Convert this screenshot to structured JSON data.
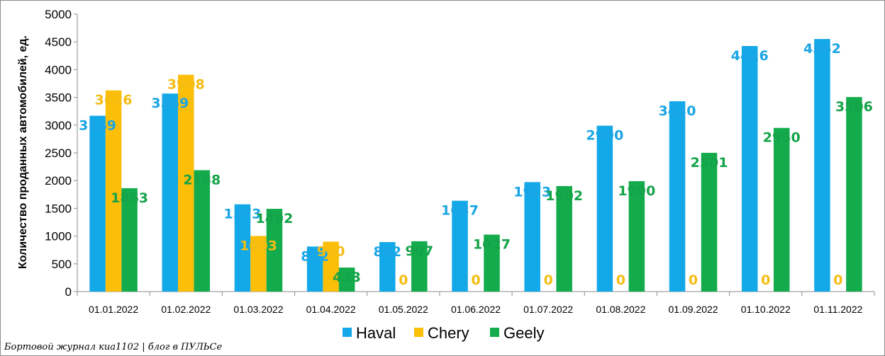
{
  "chart_data": {
    "type": "bar",
    "ylabel": "Количество проданных  автомобилей, ед.",
    "ylim": [
      0,
      5000
    ],
    "yticks": [
      0,
      500,
      1000,
      1500,
      2000,
      2500,
      3000,
      3500,
      4000,
      4500,
      5000
    ],
    "grid": false,
    "legend": "bottom",
    "categories": [
      "01.01.2022",
      "01.02.2022",
      "01.03.2022",
      "01.04.2022",
      "01.05.2022",
      "01.06.2022",
      "01.07.2022",
      "01.08.2022",
      "01.09.2022",
      "01.10.2022",
      "01.11.2022"
    ],
    "series": [
      {
        "name": "Haval",
        "color": "#13a8e8",
        "label_color": "#1aa5e5",
        "values": [
          3169,
          3569,
          1573,
          812,
          892,
          1637,
          1973,
          2990,
          3430,
          4426,
          4552
        ]
      },
      {
        "name": "Chery",
        "color": "#fbbf0a",
        "label_color": "#f5bc12",
        "values": [
          3626,
          3908,
          1003,
          900,
          0,
          0,
          0,
          0,
          0,
          0,
          0
        ]
      },
      {
        "name": "Geely",
        "color": "#13ab4c",
        "label_color": "#14a348",
        "values": [
          1863,
          2188,
          1492,
          433,
          907,
          1027,
          1902,
          1990,
          2501,
          2950,
          3506
        ]
      }
    ]
  },
  "footer": {
    "credit": "Бортовой журнал киа1102 | блог в ПУЛЬСе"
  }
}
